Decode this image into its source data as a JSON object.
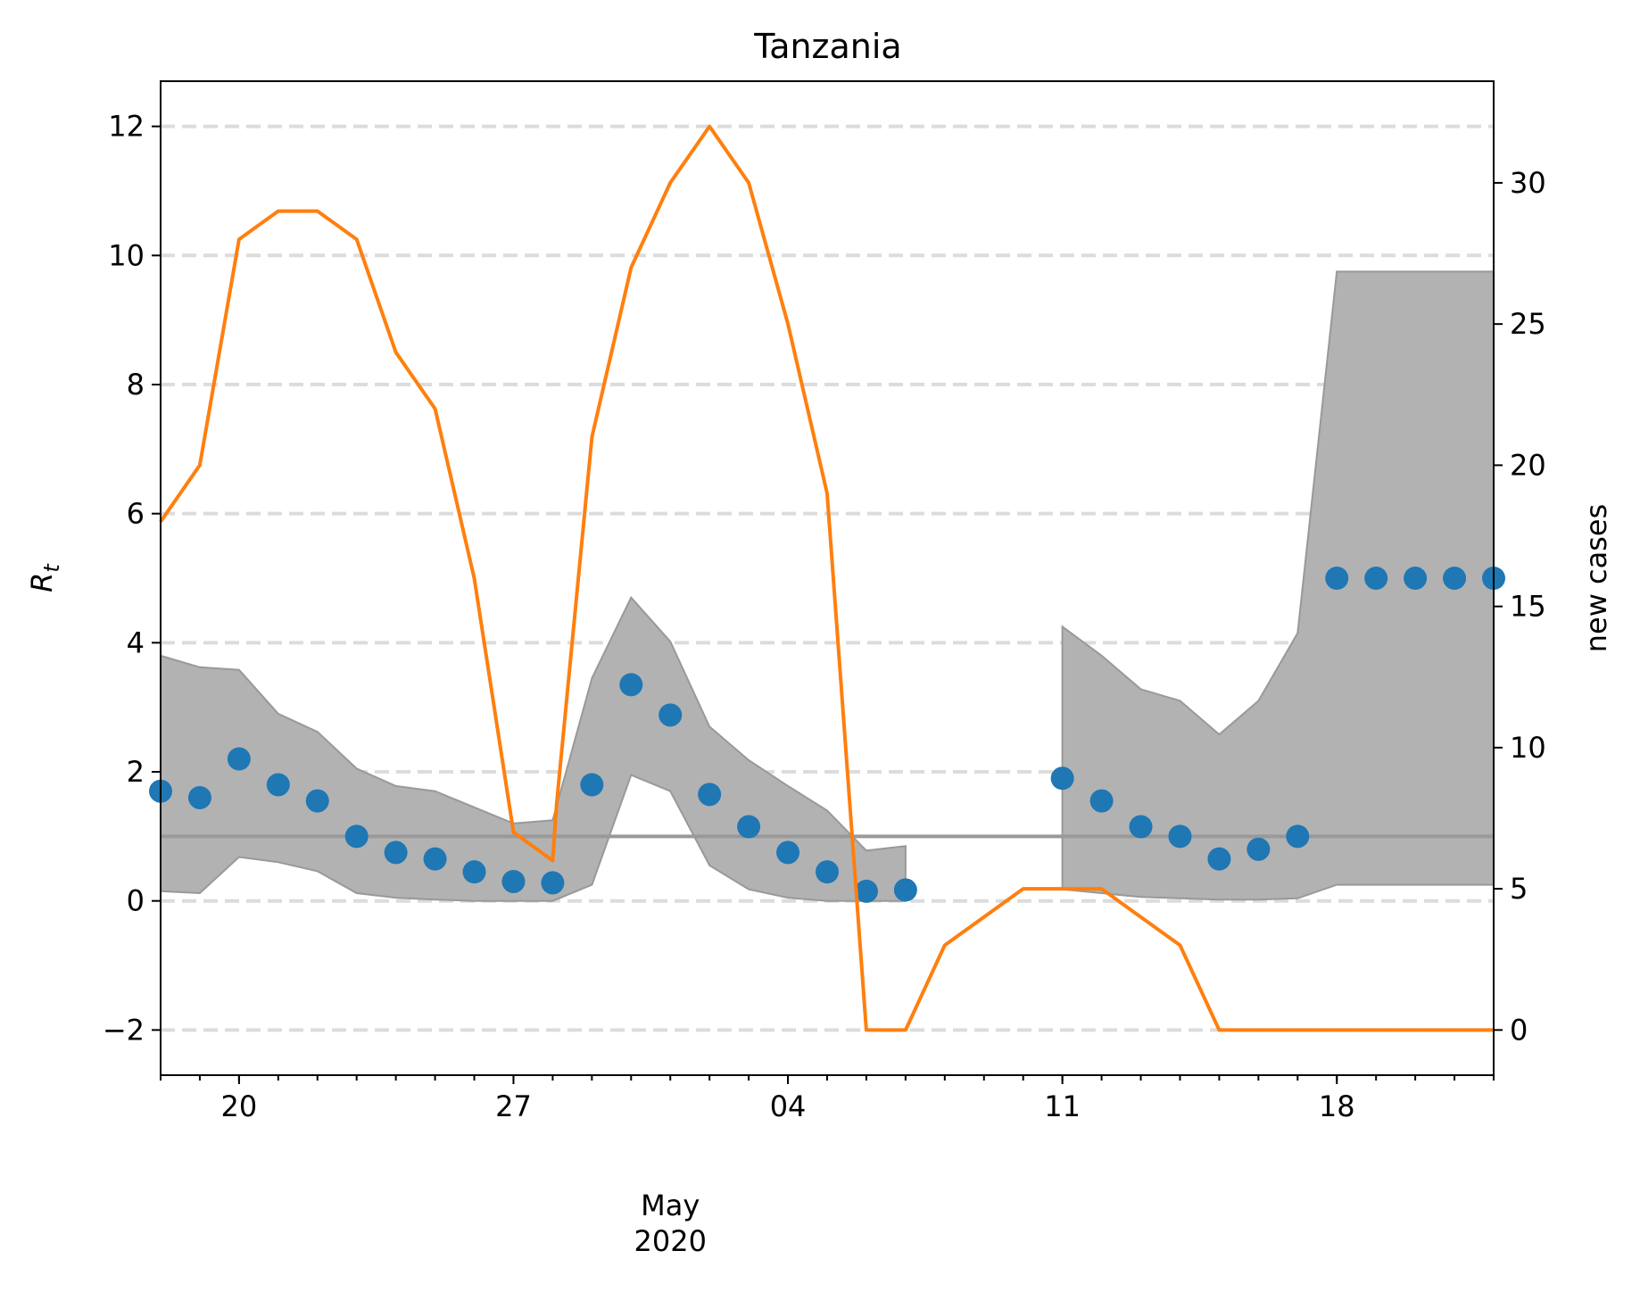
{
  "chart_data": {
    "type": "line",
    "title": "Tanzania",
    "ylabel_left": "R",
    "ylabel_left_sub": "t",
    "ylabel_right": "new cases",
    "x_dates": [
      "2020-04-18",
      "2020-04-19",
      "2020-04-20",
      "2020-04-21",
      "2020-04-22",
      "2020-04-23",
      "2020-04-24",
      "2020-04-25",
      "2020-04-26",
      "2020-04-27",
      "2020-04-28",
      "2020-04-29",
      "2020-04-30",
      "2020-05-01",
      "2020-05-02",
      "2020-05-03",
      "2020-05-04",
      "2020-05-05",
      "2020-05-06",
      "2020-05-07",
      "2020-05-08",
      "2020-05-09",
      "2020-05-10",
      "2020-05-11",
      "2020-05-12",
      "2020-05-13",
      "2020-05-14",
      "2020-05-15",
      "2020-05-16",
      "2020-05-17",
      "2020-05-18",
      "2020-05-19",
      "2020-05-20",
      "2020-05-21",
      "2020-05-22"
    ],
    "xlim": [
      "2020-04-18",
      "2020-05-22"
    ],
    "x_major_ticks": [
      {
        "date": "2020-04-20",
        "label": "20"
      },
      {
        "date": "2020-04-27",
        "label": "27"
      },
      {
        "date": "2020-05-04",
        "label": "04"
      },
      {
        "date": "2020-05-11",
        "label": "11"
      },
      {
        "date": "2020-05-18",
        "label": "18"
      }
    ],
    "x_minor_label": "May\n2020",
    "x_minor_label_date": "2020-05-01",
    "ylim_left": [
      -2.7,
      12.7
    ],
    "yticks_left": [
      -2,
      0,
      2,
      4,
      6,
      8,
      10,
      12
    ],
    "yticks_left_labels": [
      "−2",
      "0",
      "2",
      "4",
      "6",
      "8",
      "10",
      "12"
    ],
    "ylim_right": [
      -1.6,
      33.6
    ],
    "yticks_right": [
      0,
      5,
      10,
      15,
      20,
      25,
      30
    ],
    "grid": "horizontal dashed",
    "reference_line": 1,
    "series": [
      {
        "kind": "scatter",
        "axis": "left",
        "color": "#1f77b4",
        "values": [
          1.7,
          1.6,
          2.2,
          1.8,
          1.55,
          1.0,
          0.75,
          0.65,
          0.45,
          0.3,
          0.28,
          1.8,
          3.35,
          2.88,
          1.65,
          1.15,
          0.75,
          0.45,
          0.15,
          0.17,
          null,
          null,
          null,
          1.9,
          1.55,
          1.15,
          1.0,
          0.65,
          0.8,
          1.0,
          5.0,
          5.0,
          5.0,
          5.0,
          5.0
        ]
      },
      {
        "kind": "band",
        "axis": "left",
        "color": "#b2b2b2",
        "segments": [
          {
            "start": "2020-04-18",
            "upper": [
              3.8,
              3.62,
              3.58,
              2.9,
              2.62,
              2.05,
              1.78,
              1.7,
              1.45,
              1.2,
              1.25,
              3.45,
              4.7,
              4.02,
              2.7,
              2.18,
              1.78,
              1.4,
              0.78,
              0.85
            ],
            "lower": [
              0.15,
              0.12,
              0.68,
              0.6,
              0.46,
              0.12,
              0.05,
              0.02,
              0.0,
              0.0,
              0.0,
              0.25,
              1.95,
              1.7,
              0.55,
              0.18,
              0.05,
              0.0,
              0.0,
              0.0
            ]
          },
          {
            "start": "2020-05-11",
            "upper": [
              4.25,
              3.8,
              3.28,
              3.1,
              2.58,
              3.1,
              4.15,
              9.75,
              9.75,
              9.75,
              9.75,
              9.75
            ],
            "lower": [
              0.18,
              0.12,
              0.06,
              0.04,
              0.02,
              0.02,
              0.04,
              0.25,
              0.25,
              0.25,
              0.25,
              0.25
            ]
          }
        ]
      },
      {
        "kind": "line",
        "axis": "right",
        "color": "#ff7f0e",
        "points": [
          [
            "2020-04-18",
            18
          ],
          [
            "2020-04-19",
            20
          ],
          [
            "2020-04-20",
            28
          ],
          [
            "2020-04-21",
            29
          ],
          [
            "2020-04-22",
            29
          ],
          [
            "2020-04-23",
            28
          ],
          [
            "2020-04-24",
            24
          ],
          [
            "2020-04-25",
            22
          ],
          [
            "2020-04-26",
            16
          ],
          [
            "2020-04-27",
            7
          ],
          [
            "2020-04-28",
            6
          ],
          [
            "2020-04-28.1",
            8
          ],
          [
            "2020-04-29",
            21
          ],
          [
            "2020-04-30",
            27
          ],
          [
            "2020-05-01",
            30
          ],
          [
            "2020-05-02",
            32
          ],
          [
            "2020-05-03",
            30
          ],
          [
            "2020-05-04",
            25
          ],
          [
            "2020-05-05",
            19
          ],
          [
            "2020-05-06",
            0
          ],
          [
            "2020-05-07",
            0
          ],
          [
            "2020-05-08",
            3
          ],
          [
            "2020-05-09",
            4
          ],
          [
            "2020-05-10",
            5
          ],
          [
            "2020-05-11",
            5
          ],
          [
            "2020-05-12",
            5
          ],
          [
            "2020-05-13",
            4
          ],
          [
            "2020-05-14",
            3
          ],
          [
            "2020-05-15",
            0
          ],
          [
            "2020-05-16",
            0
          ],
          [
            "2020-05-17",
            0
          ],
          [
            "2020-05-18",
            0
          ],
          [
            "2020-05-19",
            0
          ],
          [
            "2020-05-20",
            0
          ],
          [
            "2020-05-21",
            0
          ],
          [
            "2020-05-22",
            0
          ]
        ]
      }
    ]
  }
}
